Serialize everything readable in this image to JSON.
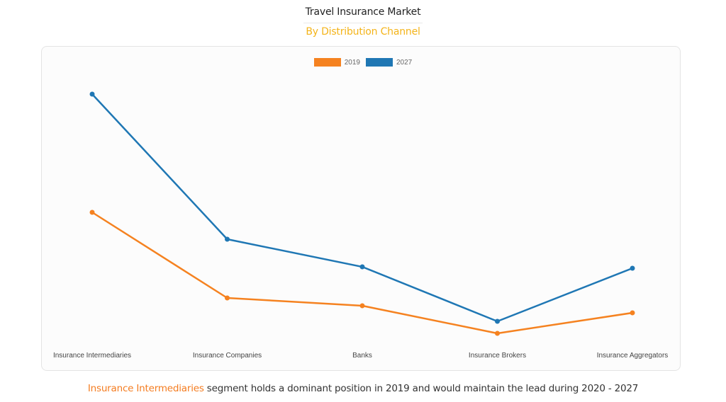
{
  "header": {
    "title": "Travel Insurance Market",
    "subtitle": "By Distribution Channel"
  },
  "caption": {
    "highlight": "Insurance Intermediaries",
    "rest": " segment holds a dominant position in 2019 and would maintain the lead during 2020 - 2027"
  },
  "colors": {
    "series_2019": "#f58220",
    "series_2027": "#1f77b4",
    "subtitle": "#f4b41a",
    "caption_highlight": "#f47c20"
  },
  "chart_data": {
    "type": "line",
    "title": "Travel Insurance Market",
    "subtitle": "By Distribution Channel",
    "xlabel": "",
    "ylabel": "",
    "y_axis_visible": false,
    "grid": false,
    "legend_position": "top-center",
    "value_note": "No y-axis shown; values are relative heights above chart baseline (pixels)",
    "categories": [
      "Insurance Intermediaries",
      "Insurance Companies",
      "Banks",
      "Insurance Brokers",
      "Insurance Aggregators"
    ],
    "series": [
      {
        "name": "2019",
        "color": "#f58220",
        "values": [
          190,
          69,
          58,
          19,
          48
        ]
      },
      {
        "name": "2027",
        "color": "#1f77b4",
        "values": [
          357,
          152,
          113,
          36,
          111
        ]
      }
    ],
    "ylim": [
      0,
      380
    ]
  }
}
